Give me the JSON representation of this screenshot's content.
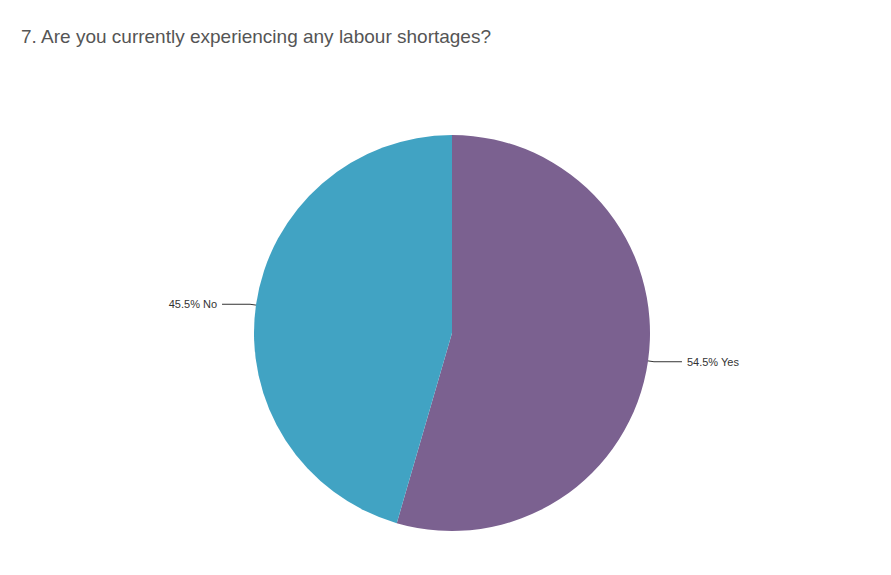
{
  "chart_data": {
    "type": "pie",
    "title": "7. Are you currently experiencing any labour shortages?",
    "categories": [
      "Yes",
      "No"
    ],
    "values": [
      54.5,
      45.5
    ],
    "value_labels": [
      "54.5% Yes",
      "45.5% No"
    ],
    "colors": [
      "#7b6190",
      "#41a3c3"
    ],
    "data_labels": true
  }
}
